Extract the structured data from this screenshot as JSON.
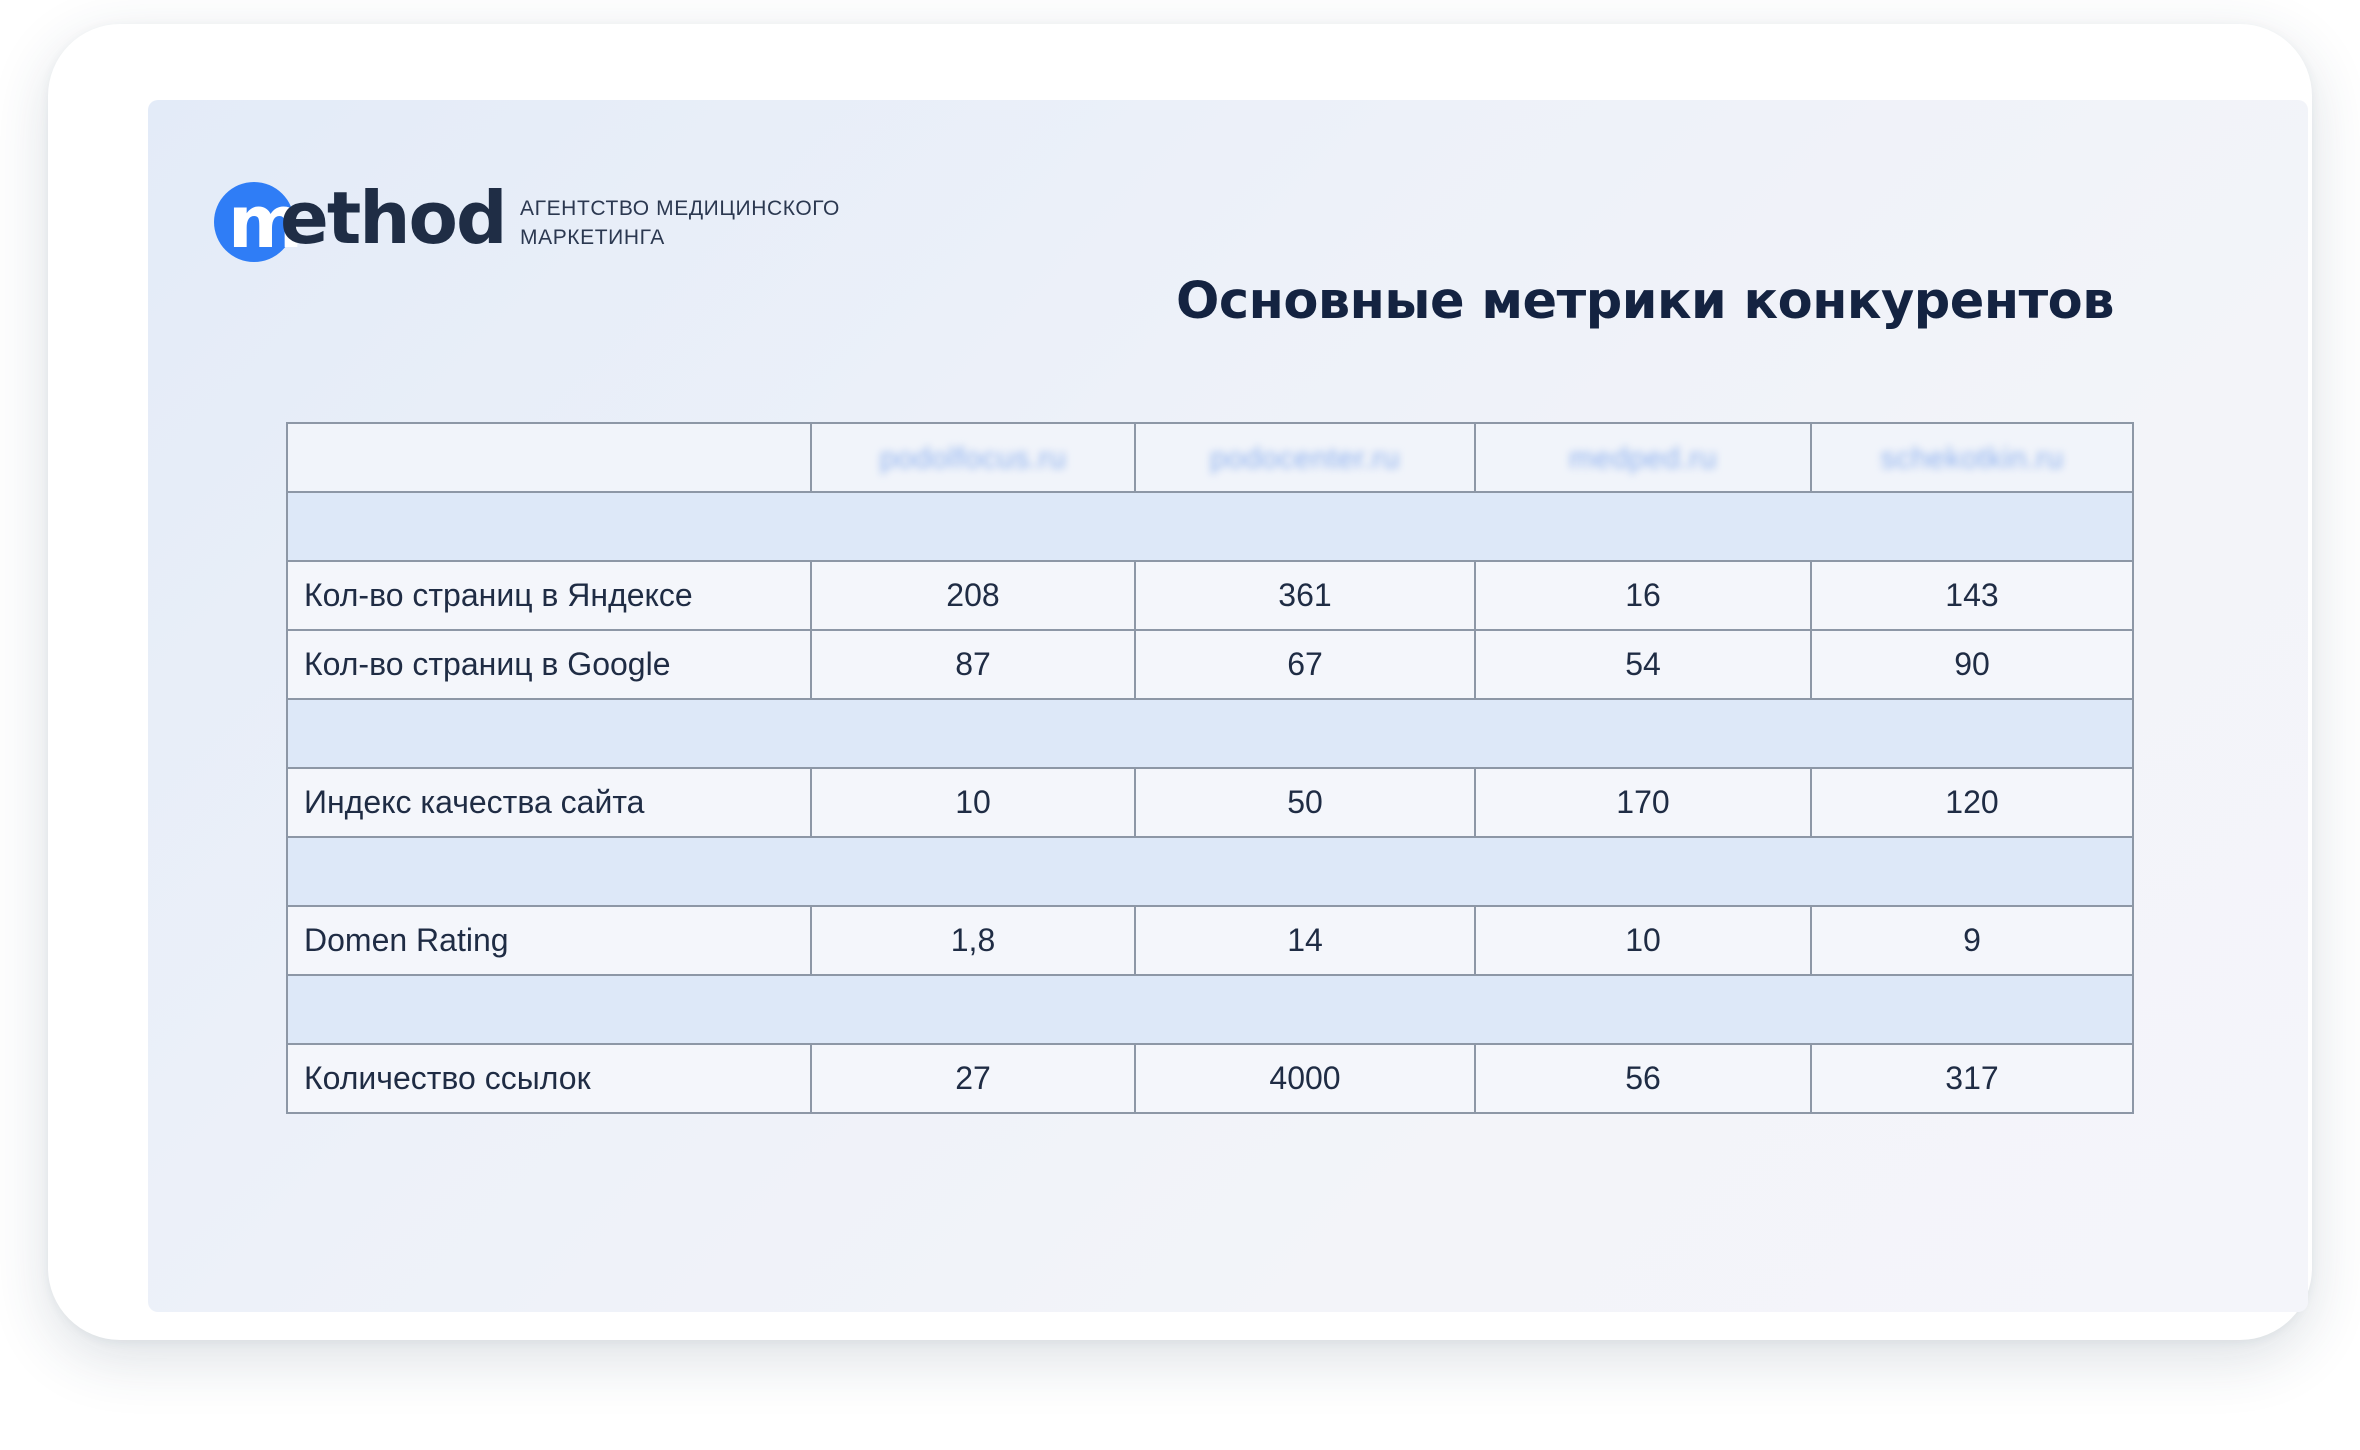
{
  "logo": {
    "wordmark_first": "m",
    "wordmark_rest": "ethod",
    "tagline_line1": "АГЕНТСТВО МЕДИЦИНСКОГО",
    "tagline_line2": "МАРКЕТИНГА",
    "accent_color": "#2f7df6",
    "text_color": "#1f2d45"
  },
  "title": "Основные метрики конкурентов",
  "table": {
    "header": {
      "empty": "",
      "sites": [
        "podolfocus.ru",
        "podocenter.ru",
        "medped.ru",
        "schekotkin.ru"
      ]
    },
    "rows": [
      {
        "label": "Кол-во страниц в Яндексе",
        "values": [
          "208",
          "361",
          "16",
          "143"
        ]
      },
      {
        "label": "Кол-во страниц в Google",
        "values": [
          "87",
          "67",
          "54",
          "90"
        ]
      },
      {
        "label": "Индекс качества сайта",
        "values": [
          "10",
          "50",
          "170",
          "120"
        ]
      },
      {
        "label": "Domen Rating",
        "values": [
          "1,8",
          "14",
          "10",
          "9"
        ]
      },
      {
        "label": "Количество ссылок",
        "values": [
          "27",
          "4000",
          "56",
          "317"
        ]
      }
    ],
    "colors": {
      "spacer_row": "#dde8f8",
      "data_row": "#f4f6fb",
      "border": "#8d97a6",
      "text": "#1f2c44"
    }
  }
}
